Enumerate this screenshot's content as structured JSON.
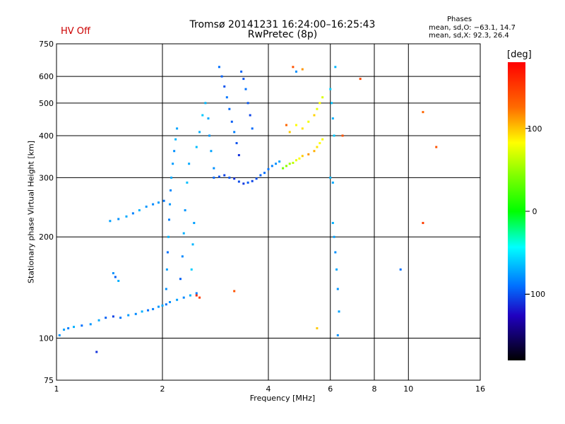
{
  "status": {
    "hv": "HV Off"
  },
  "header": {
    "title_line1": "Tromsø 20141231 16:24:00–16:25:43",
    "title_line2": "RwPretec (8p)",
    "phases_title": "Phases",
    "phases_o": "mean, sd,O: −63.1, 14.7",
    "phases_x": "mean, sd,X:  92.3, 26.4"
  },
  "colorbar": {
    "unit": "[deg]",
    "ticks": [
      {
        "value": 100,
        "label": "100"
      },
      {
        "value": 0,
        "label": "0"
      },
      {
        "value": -100,
        "label": "−100"
      }
    ],
    "range": [
      -180,
      180
    ]
  },
  "chart_data": {
    "type": "scatter",
    "title": "Tromsø 20141231 16:24:00–16:25:43",
    "subtitle": "RwPretec (8p)",
    "xlabel": "Frequency [MHz]",
    "ylabel": "Stationary phase Virtual Height [km]",
    "x_scale": "log",
    "y_scale": "log",
    "xlim": [
      1,
      16
    ],
    "ylim": [
      75,
      750
    ],
    "grid": true,
    "x_ticks": [
      {
        "value": 1,
        "label": "1"
      },
      {
        "value": 2,
        "label": "2"
      },
      {
        "value": 4,
        "label": "4"
      },
      {
        "value": 6,
        "label": "6"
      },
      {
        "value": 8,
        "label": "8"
      },
      {
        "value": 10,
        "label": "10"
      },
      {
        "value": 16,
        "label": "16"
      }
    ],
    "y_ticks": [
      {
        "value": 75,
        "label": "75"
      },
      {
        "value": 100,
        "label": "100"
      },
      {
        "value": 200,
        "label": "200"
      },
      {
        "value": 300,
        "label": "300"
      },
      {
        "value": 400,
        "label": "400"
      },
      {
        "value": 500,
        "label": "500"
      },
      {
        "value": 600,
        "label": "600"
      },
      {
        "value": 750,
        "label": "750"
      }
    ],
    "series": [
      {
        "name": "",
        "points": [
          [
            1.02,
            102,
            -80
          ],
          [
            1.05,
            106,
            -75
          ],
          [
            1.08,
            107,
            -85
          ],
          [
            1.12,
            108,
            -70
          ],
          [
            1.18,
            109,
            -90
          ],
          [
            1.25,
            110,
            -78
          ],
          [
            1.32,
            113,
            -72
          ],
          [
            1.38,
            115,
            -95
          ],
          [
            1.45,
            116,
            -105
          ],
          [
            1.52,
            115,
            -88
          ],
          [
            1.6,
            117,
            -76
          ],
          [
            1.68,
            118,
            -82
          ],
          [
            1.75,
            120,
            -70
          ],
          [
            1.82,
            121,
            -90
          ],
          [
            1.88,
            122,
            -85
          ],
          [
            1.95,
            124,
            -78
          ],
          [
            2.0,
            125,
            -72
          ],
          [
            2.05,
            126,
            -88
          ],
          [
            2.1,
            128,
            -80
          ],
          [
            2.2,
            130,
            -75
          ],
          [
            2.3,
            132,
            -82
          ],
          [
            2.4,
            134,
            -70
          ],
          [
            2.5,
            136,
            -86
          ],
          [
            1.45,
            156,
            -80
          ],
          [
            1.47,
            152,
            -95
          ],
          [
            1.5,
            148,
            -70
          ],
          [
            1.42,
            223,
            -75
          ],
          [
            1.5,
            226,
            -80
          ],
          [
            1.58,
            230,
            -72
          ],
          [
            1.65,
            235,
            -85
          ],
          [
            1.72,
            240,
            -70
          ],
          [
            1.8,
            246,
            -78
          ],
          [
            1.88,
            250,
            -82
          ],
          [
            1.95,
            253,
            -76
          ],
          [
            2.02,
            256,
            -88
          ],
          [
            2.05,
            140,
            -80
          ],
          [
            2.06,
            160,
            -75
          ],
          [
            2.07,
            180,
            -90
          ],
          [
            2.08,
            200,
            -70
          ],
          [
            2.09,
            225,
            -85
          ],
          [
            2.1,
            250,
            -78
          ],
          [
            2.11,
            275,
            -82
          ],
          [
            2.12,
            300,
            -72
          ],
          [
            2.14,
            330,
            -76
          ],
          [
            2.16,
            360,
            -80
          ],
          [
            2.18,
            390,
            -68
          ],
          [
            2.2,
            420,
            -74
          ],
          [
            2.25,
            150,
            -95
          ],
          [
            2.28,
            175,
            -82
          ],
          [
            2.3,
            205,
            -70
          ],
          [
            2.32,
            240,
            -78
          ],
          [
            2.35,
            290,
            -65
          ],
          [
            2.38,
            330,
            -72
          ],
          [
            2.42,
            160,
            -60
          ],
          [
            2.44,
            190,
            -68
          ],
          [
            2.46,
            220,
            -75
          ],
          [
            2.5,
            370,
            -66
          ],
          [
            2.55,
            410,
            -70
          ],
          [
            2.6,
            460,
            -62
          ],
          [
            2.65,
            500,
            -68
          ],
          [
            2.7,
            450,
            -72
          ],
          [
            2.72,
            400,
            -78
          ],
          [
            2.75,
            360,
            -74
          ],
          [
            2.8,
            320,
            -80
          ],
          [
            2.9,
            640,
            -90
          ],
          [
            2.95,
            600,
            -95
          ],
          [
            3.0,
            560,
            -100
          ],
          [
            3.05,
            520,
            -88
          ],
          [
            3.1,
            480,
            -92
          ],
          [
            3.15,
            440,
            -96
          ],
          [
            3.2,
            410,
            -85
          ],
          [
            3.25,
            380,
            -100
          ],
          [
            3.3,
            350,
            -110
          ],
          [
            3.35,
            620,
            -95
          ],
          [
            3.4,
            590,
            -100
          ],
          [
            3.45,
            550,
            -90
          ],
          [
            3.5,
            500,
            -98
          ],
          [
            3.55,
            460,
            -104
          ],
          [
            3.6,
            420,
            -92
          ],
          [
            2.8,
            300,
            -92
          ],
          [
            2.9,
            302,
            -100
          ],
          [
            3.0,
            305,
            -105
          ],
          [
            3.1,
            300,
            -98
          ],
          [
            3.2,
            298,
            -110
          ],
          [
            3.3,
            292,
            -102
          ],
          [
            3.4,
            288,
            -108
          ],
          [
            3.5,
            290,
            -96
          ],
          [
            3.6,
            293,
            -104
          ],
          [
            3.7,
            298,
            -100
          ],
          [
            3.8,
            305,
            -95
          ],
          [
            3.9,
            310,
            -90
          ],
          [
            4.0,
            318,
            -88
          ],
          [
            4.1,
            325,
            -85
          ],
          [
            4.2,
            330,
            -80
          ],
          [
            4.3,
            335,
            -75
          ],
          [
            4.4,
            320,
            40
          ],
          [
            4.5,
            325,
            50
          ],
          [
            4.6,
            330,
            60
          ],
          [
            4.7,
            332,
            70
          ],
          [
            4.8,
            338,
            90
          ],
          [
            4.9,
            342,
            100
          ],
          [
            5.0,
            348,
            110
          ],
          [
            5.2,
            352,
            120
          ],
          [
            5.4,
            360,
            115
          ],
          [
            5.5,
            370,
            105
          ],
          [
            5.6,
            380,
            100
          ],
          [
            5.7,
            390,
            98
          ],
          [
            4.6,
            410,
            110
          ],
          [
            4.8,
            430,
            100
          ],
          [
            5.0,
            420,
            105
          ],
          [
            5.2,
            440,
            95
          ],
          [
            5.4,
            460,
            108
          ],
          [
            5.5,
            480,
            90
          ],
          [
            5.6,
            500,
            100
          ],
          [
            5.7,
            520,
            85
          ],
          [
            6.0,
            550,
            -60
          ],
          [
            6.05,
            500,
            -65
          ],
          [
            6.1,
            450,
            -70
          ],
          [
            6.15,
            400,
            -62
          ],
          [
            6.2,
            640,
            -68
          ],
          [
            6.1,
            220,
            -70
          ],
          [
            6.15,
            200,
            -75
          ],
          [
            6.2,
            180,
            -80
          ],
          [
            6.25,
            160,
            -72
          ],
          [
            6.3,
            140,
            -78
          ],
          [
            6.35,
            120,
            -74
          ],
          [
            6.0,
            300,
            -68
          ],
          [
            6.1,
            290,
            -72
          ],
          [
            4.7,
            640,
            140
          ],
          [
            5.0,
            630,
            120
          ],
          [
            4.5,
            430,
            130
          ],
          [
            6.5,
            400,
            140
          ],
          [
            7.3,
            590,
            145
          ],
          [
            9.5,
            160,
            -90
          ],
          [
            11,
            470,
            130
          ],
          [
            12,
            370,
            140
          ],
          [
            11,
            220,
            150
          ],
          [
            2.5,
            134,
            160
          ],
          [
            2.55,
            132,
            150
          ],
          [
            3.2,
            138,
            140
          ],
          [
            4.8,
            620,
            -80
          ],
          [
            1.3,
            91,
            -110
          ],
          [
            5.5,
            107,
            110
          ],
          [
            6.3,
            102,
            -80
          ]
        ]
      }
    ]
  }
}
